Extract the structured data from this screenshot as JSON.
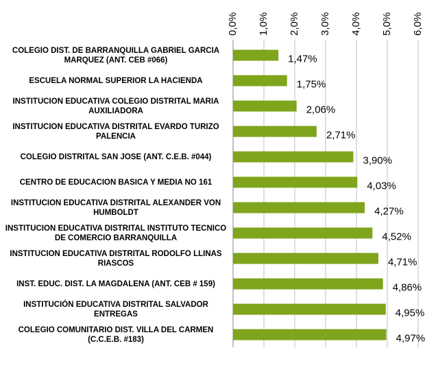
{
  "chart_data": {
    "type": "bar",
    "orientation": "horizontal",
    "categories": [
      "COLEGIO DIST. DE BARRANQUILLA GABRIEL GARCIA MARQUEZ (ANT. CEB #066)",
      "ESCUELA NORMAL SUPERIOR LA HACIENDA",
      "INSTITUCION EDUCATIVA COLEGIO DISTRITAL MARIA AUXILIADORA",
      "INSTITUCION EDUCATIVA DISTRITAL EVARDO TURIZO PALENCIA",
      "COLEGIO DISTRITAL SAN JOSE (ANT. C.E.B. #044)",
      "CENTRO DE EDUCACION BASICA Y MEDIA NO 161",
      "INSTITUCION EDUCATIVA DISTRITAL ALEXANDER VON HUMBOLDT",
      "INSTITUCION EDUCATIVA DISTRITAL INSTITUTO TECNICO DE COMERCIO BARRANQUILLA",
      "INSTITUCION EDUCATIVA DISTRITAL RODOLFO LLINAS RIASCOS",
      "INST. EDUC. DIST. LA MAGDALENA (ANT. CEB # 159)",
      "INSTITUCIÓN EDUCATIVA DISTRITAL SALVADOR ENTREGAS",
      "COLEGIO COMUNITARIO DIST. VILLA DEL CARMEN (C.C.E.B. #183)"
    ],
    "values": [
      1.47,
      1.75,
      2.06,
      2.71,
      3.9,
      4.03,
      4.27,
      4.52,
      4.71,
      4.86,
      4.95,
      4.97
    ],
    "value_labels": [
      "1,47%",
      "1,75%",
      "2,06%",
      "2,71%",
      "3,90%",
      "4,03%",
      "4,27%",
      "4,52%",
      "4,71%",
      "4,86%",
      "4,95%",
      "4,97%"
    ],
    "color": "#7fa51c",
    "xlim": [
      0,
      6
    ],
    "xticks": [
      {
        "value": 0,
        "label": "0,0%"
      },
      {
        "value": 1,
        "label": "1,0%"
      },
      {
        "value": 2,
        "label": "2,0%"
      },
      {
        "value": 3,
        "label": "3,0%"
      },
      {
        "value": 4,
        "label": "4,0%"
      },
      {
        "value": 5,
        "label": "5,0%"
      },
      {
        "value": 6,
        "label": "6,0%"
      }
    ],
    "grid": true
  }
}
